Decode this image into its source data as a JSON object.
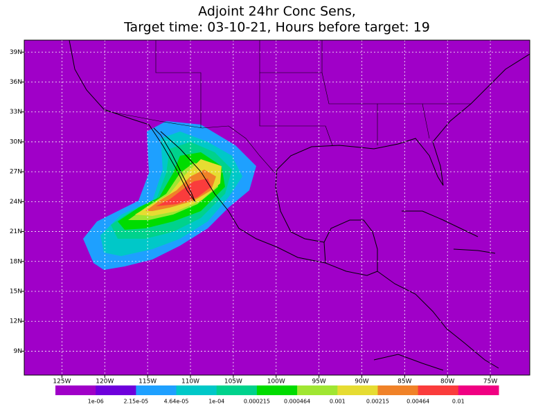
{
  "title": [
    "Adjoint 24hr Conc Sens,",
    "Target time: 03-10-21, Hours before target: 19"
  ],
  "map": {
    "xlim": [
      -129.4,
      -70.4
    ],
    "ylim": [
      6.6,
      40.2
    ],
    "xticks": [
      {
        "value": -125,
        "label": "125W"
      },
      {
        "value": -120,
        "label": "120W"
      },
      {
        "value": -115,
        "label": "115W"
      },
      {
        "value": -110,
        "label": "110W"
      },
      {
        "value": -105,
        "label": "105W"
      },
      {
        "value": -100,
        "label": "100W"
      },
      {
        "value": -95,
        "label": "95W"
      },
      {
        "value": -90,
        "label": "90W"
      },
      {
        "value": -85,
        "label": "85W"
      },
      {
        "value": -80,
        "label": "80W"
      },
      {
        "value": -75,
        "label": "75W"
      }
    ],
    "yticks": [
      {
        "value": 39,
        "label": "39N"
      },
      {
        "value": 36,
        "label": "36N"
      },
      {
        "value": 33,
        "label": "33N"
      },
      {
        "value": 30,
        "label": "30N"
      },
      {
        "value": 27,
        "label": "27N"
      },
      {
        "value": 24,
        "label": "24N"
      },
      {
        "value": 21,
        "label": "21N"
      },
      {
        "value": 18,
        "label": "18N"
      },
      {
        "value": 15,
        "label": "15N"
      },
      {
        "value": 12,
        "label": "12N"
      },
      {
        "value": 9,
        "label": "9N"
      }
    ],
    "grid": true,
    "background": "#a000c8"
  },
  "colorbar": {
    "colors": [
      "#a000c8",
      "#6e00dc",
      "#1ea0ff",
      "#00c8c8",
      "#00d28c",
      "#00dc00",
      "#a0e632",
      "#e6dc32",
      "#f08228",
      "#fa3c3c",
      "#f00082"
    ],
    "labels": [
      "1e-06",
      "2.15e-05",
      "4.64e-05",
      "1e-04",
      "0.000215",
      "0.000464",
      "0.001",
      "0.00215",
      "0.00464",
      "0.01"
    ]
  }
}
